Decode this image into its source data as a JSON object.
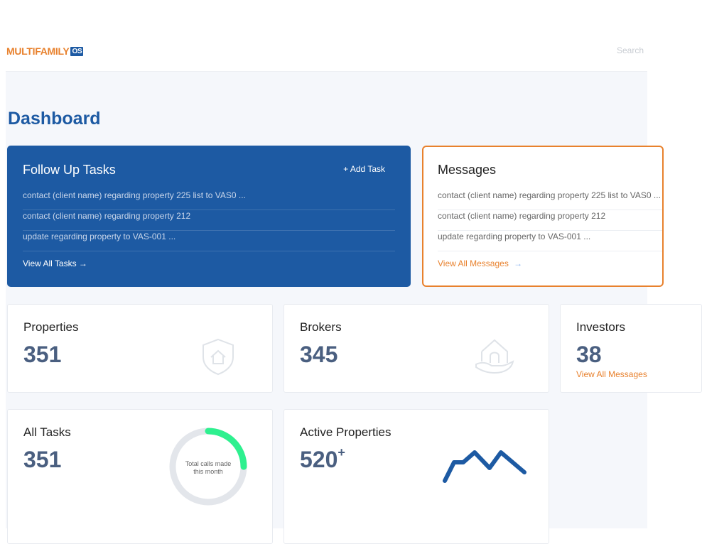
{
  "header": {
    "logo_text": "MULTIFAMILY",
    "logo_badge": "OS",
    "search_placeholder": "Search"
  },
  "page_title": "Dashboard",
  "follow_up": {
    "title": "Follow Up Tasks",
    "add_label": "+ Add Task",
    "items": [
      "contact (client name) regarding property 225 list to VAS0 ...",
      "contact (client name) regarding property 212",
      "update regarding property to VAS-001 ..."
    ],
    "view_all": "View All Tasks →"
  },
  "messages": {
    "title": "Messages",
    "items": [
      "contact (client name) regarding property 225 list to VAS0 ...",
      "contact (client name) regarding property 212",
      "update regarding property to VAS-001 ..."
    ],
    "view_all": "View All Messages",
    "arrow": "→"
  },
  "stats": {
    "properties": {
      "title": "Properties",
      "value": "351",
      "icon": "shield-home-icon"
    },
    "brokers": {
      "title": "Brokers",
      "value": "345",
      "icon": "hand-house-icon"
    },
    "investors": {
      "title": "Investors",
      "value": "38",
      "link": "View All Messages"
    },
    "all_tasks": {
      "title": "All Tasks",
      "value": "351",
      "donut_label_1": "Total calls made",
      "donut_label_2": "this month",
      "progress": 0.25
    },
    "active": {
      "title": "Active Properties",
      "value": "520",
      "suffix": "+"
    }
  },
  "colors": {
    "primary": "#1d5aa3",
    "accent": "#e8812d",
    "progress": "#2ef08f"
  }
}
